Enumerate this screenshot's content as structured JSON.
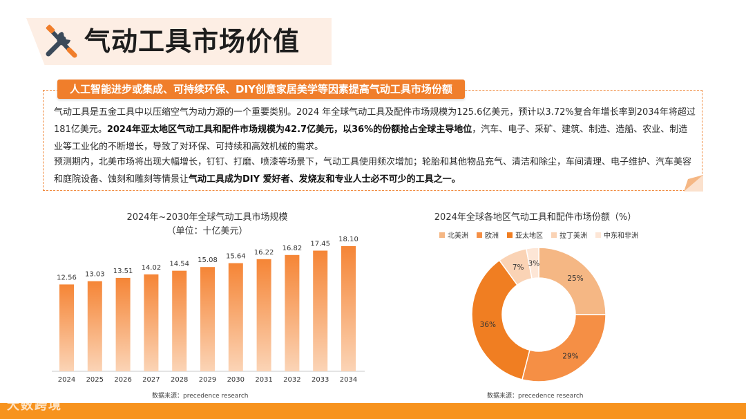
{
  "page": {
    "title": "气动工具市场价值",
    "tag": "人工智能进步或集成、可持续环保、DIY创意家居美学等因素提高气动工具市场份额",
    "para1_a": "气动工具是五金工具中以压缩空气为动力源的一个重要类别。2024 年全球气动工具及配件市场规模为125.6亿美元，预计以3.72%复合年增长率到2034年将超过181亿美元。",
    "para1_bold": "2024年亚太地区气动工具和配件市场规模为42.7亿美元，以36%的份额抢占全球主导地位",
    "para1_b": "，汽车、电子、采矿、建筑、制造、造船、农业、制造业等工业化的不断增长，导致了对环保、可持续和高效机械的需求。",
    "para2_a": " 预测期内，北美市场将出现大幅增长，钉钉、打磨、喷漆等场景下，气动工具使用频次增加；轮胎和其他物品充气、清洁和除尘，车间清理、电子维护、汽车美容和庭院设备、蚀刻和雕刻等情景让",
    "para2_bold": "气动工具成为DIY 爱好者、发烧友和专业人士必不可少的工具之一。",
    "logo_text": "大数跨境",
    "icon": "tools-icon"
  },
  "chart_data": [
    {
      "type": "bar",
      "title": "2024年~2030年全球气动工具市场规模",
      "subtitle": "（单位：十亿美元）",
      "categories": [
        "2024",
        "2025",
        "2026",
        "2027",
        "2028",
        "2029",
        "2030",
        "2031",
        "2032",
        "2033",
        "2034"
      ],
      "value_labels": [
        "12.56",
        "13.03",
        "13.51",
        "14.02",
        "14.54",
        "15.08",
        "15.64",
        "16.22",
        "16.82",
        "17.45",
        "18.10"
      ],
      "values": [
        12.56,
        13.03,
        13.51,
        14.02,
        14.54,
        15.08,
        15.64,
        16.22,
        16.82,
        17.45,
        18.1
      ],
      "ylim": [
        0,
        20
      ],
      "source": "数据来源：precedence research",
      "color": "#f58536"
    },
    {
      "type": "pie",
      "title": "2024年全球各地区气动工具和配件市场份额（%）",
      "labels": [
        "北美洲",
        "欧洲",
        "亚太地区",
        "拉丁美洲",
        "中东和非洲"
      ],
      "values": [
        25,
        29,
        36,
        7,
        3
      ],
      "value_labels": [
        "25%",
        "29%",
        "36%",
        "7%",
        "3%"
      ],
      "colors": [
        "#f5b784",
        "#f58f45",
        "#f07e22",
        "#fad3b5",
        "#fde6d6"
      ],
      "source": "数据来源：precedence research"
    }
  ]
}
